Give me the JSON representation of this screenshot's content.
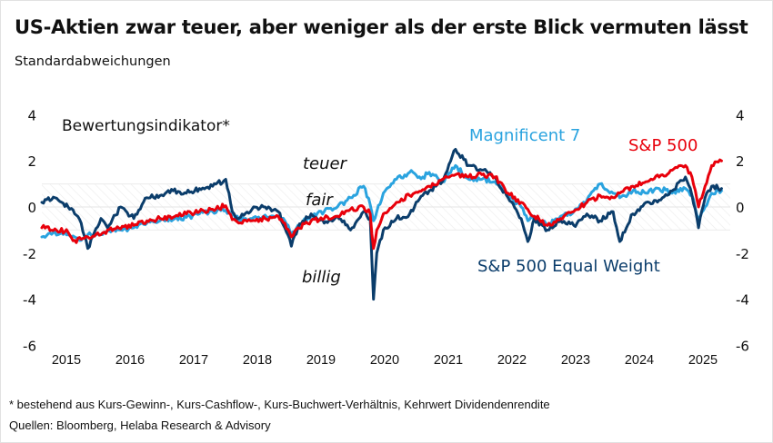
{
  "title": "US-Aktien zwar teuer, aber weniger als der erste Blick vermuten lässt",
  "subtitle": "Standardabweichungen",
  "footnote": "* bestehend aus Kurs-Gewinn-, Kurs-Cashflow-, Kurs-Buchwert-Verhältnis, Kehrwert Dividendenrendite",
  "sources": "Quellen: Bloomberg, Helaba Research & Advisory",
  "chart_data": {
    "type": "line",
    "title": "US-Aktien zwar teuer, aber weniger als der erste Blick vermuten lässt",
    "subtitle": "Standardabweichungen",
    "ylabel": "Standardabweichungen",
    "xlabel": "",
    "ylim": [
      -6,
      4
    ],
    "yticks": [
      4,
      2,
      0,
      -2,
      -4,
      -6
    ],
    "ytick_labels": [
      "4",
      "2",
      "0",
      "-2",
      "-4",
      "-6"
    ],
    "xlim": [
      2015.1,
      2025.5
    ],
    "xticks": [
      2015,
      2016,
      2017,
      2018,
      2019,
      2020,
      2021,
      2022,
      2023,
      2024,
      2025
    ],
    "xtick_labels": [
      "2015",
      "2016",
      "2017",
      "2018",
      "2019",
      "2020",
      "2021",
      "2022",
      "2023",
      "2024",
      "2025"
    ],
    "fair_band": [
      -1,
      1
    ],
    "grid": false,
    "dual_y_axis": true,
    "annotations": {
      "indicator": "Bewertungsindikator*",
      "teuer": "teuer",
      "fair": "fair",
      "billig": "billig"
    },
    "x": [
      2015.1,
      2015.3,
      2015.5,
      2015.6,
      2015.7,
      2015.8,
      2016.0,
      2016.1,
      2016.3,
      2016.5,
      2016.7,
      2016.9,
      2017.1,
      2017.3,
      2017.5,
      2017.7,
      2017.9,
      2018.0,
      2018.1,
      2018.3,
      2018.5,
      2018.7,
      2018.8,
      2018.9,
      2019.0,
      2019.2,
      2019.4,
      2019.6,
      2019.8,
      2020.0,
      2020.1,
      2020.15,
      2020.2,
      2020.3,
      2020.5,
      2020.7,
      2020.9,
      2021.0,
      2021.2,
      2021.4,
      2021.6,
      2021.8,
      2022.0,
      2022.2,
      2022.4,
      2022.5,
      2022.6,
      2022.8,
      2023.0,
      2023.2,
      2023.4,
      2023.6,
      2023.8,
      2023.9,
      2024.1,
      2024.3,
      2024.5,
      2024.7,
      2024.9,
      2025.0,
      2025.1,
      2025.2,
      2025.3,
      2025.45
    ],
    "series": [
      {
        "name": "S&P 500",
        "color": "#e8000b",
        "values": [
          -0.9,
          -0.95,
          -1.1,
          -1.45,
          -1.4,
          -1.3,
          -1.2,
          -1.0,
          -0.95,
          -0.8,
          -0.6,
          -0.5,
          -0.45,
          -0.3,
          -0.2,
          -0.1,
          0.05,
          -0.55,
          -0.7,
          -0.6,
          -0.5,
          -0.4,
          -0.7,
          -1.3,
          -0.9,
          -0.6,
          -0.5,
          -0.4,
          -0.1,
          0.0,
          -0.3,
          -1.8,
          -1.0,
          -0.3,
          0.2,
          0.5,
          0.75,
          0.9,
          1.2,
          1.4,
          1.3,
          1.4,
          1.3,
          0.6,
          0.2,
          -0.1,
          -0.4,
          -0.8,
          -0.5,
          -0.2,
          0.2,
          0.5,
          0.4,
          0.6,
          0.9,
          1.1,
          1.3,
          1.6,
          1.8,
          1.3,
          0.0,
          0.9,
          1.8,
          2.0
        ]
      },
      {
        "name": "Magnificent 7",
        "color": "#2aa3df",
        "values": [
          -1.3,
          -1.1,
          -1.2,
          -1.3,
          -1.45,
          -1.2,
          -1.2,
          -1.05,
          -1.0,
          -0.9,
          -0.7,
          -0.6,
          -0.55,
          -0.45,
          -0.3,
          -0.2,
          -0.15,
          -0.35,
          -0.55,
          -0.5,
          -0.35,
          -0.4,
          -0.6,
          -1.2,
          -0.8,
          -0.4,
          -0.2,
          0.0,
          0.4,
          0.9,
          0.1,
          -0.6,
          -0.2,
          0.6,
          1.2,
          1.5,
          1.3,
          1.5,
          1.1,
          1.8,
          1.2,
          1.2,
          1.1,
          0.5,
          0.0,
          -0.6,
          -0.4,
          -0.8,
          -0.4,
          -0.2,
          0.3,
          1.0,
          0.6,
          0.4,
          0.7,
          0.6,
          0.8,
          0.6,
          0.8,
          0.5,
          -0.5,
          0.0,
          0.6,
          0.7
        ]
      },
      {
        "name": "S&P 500 Equal Weight",
        "color": "#0b3d6b",
        "values": [
          0.2,
          0.4,
          0.0,
          -0.3,
          -0.7,
          -1.8,
          -0.5,
          -0.9,
          0.0,
          -0.5,
          0.4,
          0.5,
          0.7,
          0.6,
          0.8,
          0.9,
          1.2,
          -0.2,
          -0.5,
          -0.1,
          0.0,
          -0.2,
          -0.9,
          -1.7,
          -0.9,
          -0.3,
          -0.7,
          -0.4,
          -1.0,
          -0.2,
          -0.5,
          -4.0,
          -2.0,
          -1.0,
          -0.5,
          -0.3,
          0.5,
          0.7,
          1.1,
          2.5,
          1.8,
          1.6,
          1.3,
          0.4,
          -0.5,
          -1.5,
          -0.5,
          -1.0,
          -0.6,
          -0.8,
          -0.3,
          -0.6,
          -0.2,
          -1.5,
          -0.3,
          0.2,
          0.3,
          0.7,
          1.3,
          0.5,
          -0.9,
          0.4,
          0.9,
          0.8
        ]
      }
    ],
    "legend": [
      {
        "label": "Magnificent 7",
        "color": "#2aa3df",
        "placement": "top-center"
      },
      {
        "label": "S&P 500",
        "color": "#e8000b",
        "placement": "top-right"
      },
      {
        "label": "S&P 500 Equal Weight",
        "color": "#0b3d6b",
        "placement": "bottom-right"
      }
    ]
  }
}
